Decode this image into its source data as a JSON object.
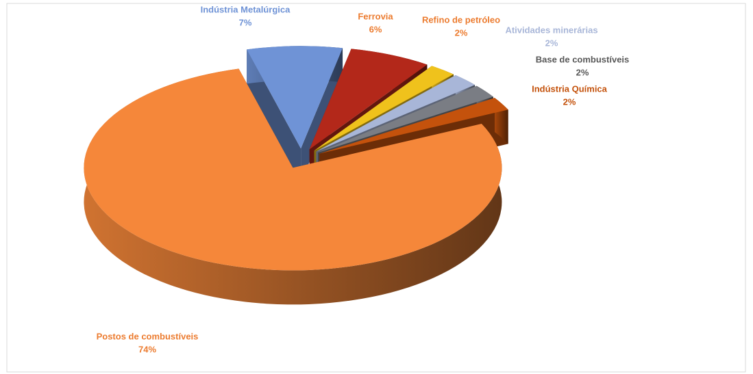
{
  "chart_data": {
    "type": "pie3d",
    "categories": [
      "Indústria Metalúrgica",
      "Ferrovia",
      "Refino de petróleo",
      "Atividades minerárias",
      "Base de combustíveis",
      "Indústria Química",
      "Postos de combustíveis"
    ],
    "values": [
      7,
      6,
      2,
      2,
      2,
      2,
      74
    ],
    "value_labels": [
      "7%",
      "6%",
      "2%",
      "2%",
      "2%",
      "2%",
      "74%"
    ],
    "colors": [
      "#6f93d6",
      "#b3281a",
      "#efc21c",
      "#a8b6d8",
      "#7a7d84",
      "#c4520c",
      "#f5873a"
    ],
    "label_colors": [
      "#6f93d6",
      "#ec7c30",
      "#ec7c30",
      "#a8b6d8",
      "#595959",
      "#c4520c",
      "#ec7c30"
    ]
  }
}
